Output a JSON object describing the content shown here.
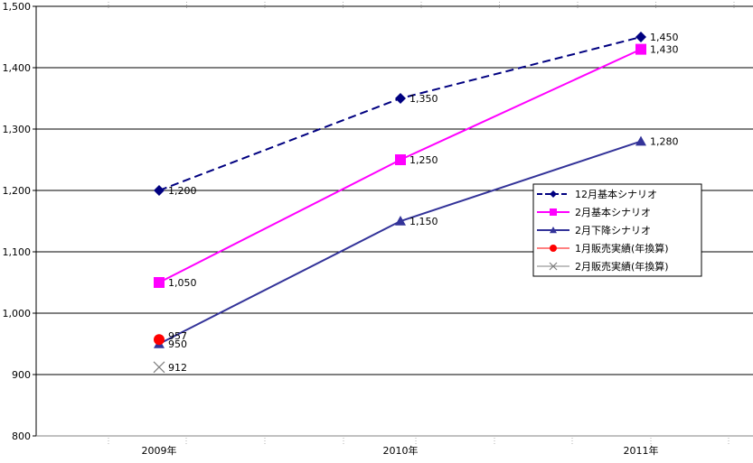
{
  "chart_data": {
    "type": "line",
    "categories": [
      "2009年",
      "2010年",
      "2011年"
    ],
    "ylim": [
      800,
      1500
    ],
    "y_ticks": [
      "800",
      "900",
      "1,000",
      "1,100",
      "1,200",
      "1,300",
      "1,400",
      "1,500"
    ],
    "grid": true,
    "legend_position": "right",
    "series": [
      {
        "name": "12月基本シナリオ",
        "values": [
          1200,
          1350,
          1450
        ],
        "labels": [
          "1,200",
          "1,350",
          "1,450"
        ],
        "color": "#000080",
        "marker": "diamond",
        "line_style": "dashed"
      },
      {
        "name": "2月基本シナリオ",
        "values": [
          1050,
          1250,
          1430
        ],
        "labels": [
          "1,050",
          "1,250",
          "1,430"
        ],
        "color": "#ff00ff",
        "marker": "square",
        "line_style": "solid"
      },
      {
        "name": "2月下降シナリオ",
        "values": [
          950,
          1150,
          1280
        ],
        "labels": [
          "950",
          "1,150",
          "1,280"
        ],
        "color": "#333399",
        "marker": "triangle",
        "line_style": "solid"
      },
      {
        "name": "1月販売実績(年換算)",
        "values": [
          957,
          null,
          null
        ],
        "labels": [
          "957",
          "",
          ""
        ],
        "color": "#ff0000",
        "marker": "circle",
        "line_style": "none"
      },
      {
        "name": "2月販売実績(年換算)",
        "values": [
          912,
          null,
          null
        ],
        "labels": [
          "912",
          "",
          ""
        ],
        "color": "#808080",
        "marker": "x",
        "line_style": "none"
      }
    ]
  }
}
